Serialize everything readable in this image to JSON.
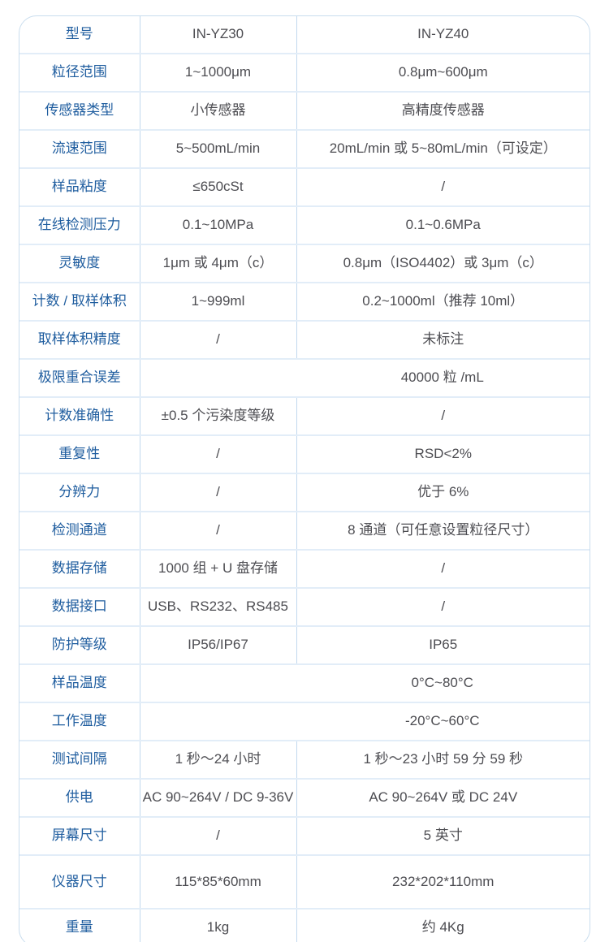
{
  "colors": {
    "label_text": "#1f5d9f",
    "value_text": "#4d4d52",
    "outer_border": "#c9ddee",
    "row_divider": "#e2edf8",
    "column_divider": "#c2d9ee",
    "background": "#ffffff"
  },
  "table": {
    "rows": [
      {
        "label": "型号",
        "values": [
          "IN-YZ30",
          "IN-YZ40"
        ]
      },
      {
        "label": "粒径范围",
        "values": [
          "1~1000μm",
          "0.8μm~600μm"
        ]
      },
      {
        "label": "传感器类型",
        "values": [
          "小传感器",
          "高精度传感器"
        ]
      },
      {
        "label": "流速范围",
        "values": [
          "5~500mL/min",
          "20mL/min 或 5~80mL/min（可设定）"
        ]
      },
      {
        "label": "样品粘度",
        "values": [
          "≤650cSt",
          "/"
        ]
      },
      {
        "label": "在线检测压力",
        "values": [
          "0.1~10MPa",
          "0.1~0.6MPa"
        ]
      },
      {
        "label": "灵敏度",
        "values": [
          "1μm 或 4μm（c）",
          "0.8μm（ISO4402）或 3μm（c）"
        ]
      },
      {
        "label": "计数 / 取样体积",
        "values": [
          "1~999ml",
          "0.2~1000ml（推荐 10ml）"
        ]
      },
      {
        "label": "取样体积精度",
        "values": [
          "/",
          "未标注"
        ]
      },
      {
        "label": "极限重合误差",
        "merged_value": "40000 粒 /mL"
      },
      {
        "label": "计数准确性",
        "values": [
          "±0.5 个污染度等级",
          "/"
        ]
      },
      {
        "label": "重复性",
        "values": [
          "/",
          "RSD<2%"
        ]
      },
      {
        "label": "分辨力",
        "values": [
          "/",
          "优于 6%"
        ]
      },
      {
        "label": "检测通道",
        "values": [
          "/",
          "8 通道（可任意设置粒径尺寸）"
        ]
      },
      {
        "label": "数据存储",
        "values": [
          "1000 组 + U 盘存储",
          "/"
        ]
      },
      {
        "label": "数据接口",
        "values": [
          "USB、RS232、RS485",
          "/"
        ]
      },
      {
        "label": "防护等级",
        "values": [
          "IP56/IP67",
          "IP65"
        ]
      },
      {
        "label": "样品温度",
        "merged_value": "0°C~80°C"
      },
      {
        "label": "工作温度",
        "merged_value": "-20°C~60°C"
      },
      {
        "label": "测试间隔",
        "values": [
          "1 秒～24 小时",
          "1 秒～23 小时 59 分 59 秒"
        ]
      },
      {
        "label": "供电",
        "values": [
          "AC 90~264V / DC 9-36V",
          "AC 90~264V 或 DC 24V"
        ]
      },
      {
        "label": "屏幕尺寸",
        "values": [
          "/",
          "5 英寸"
        ]
      },
      {
        "label": "仪器尺寸",
        "values": [
          "115*85*60mm",
          "232*202*110mm"
        ]
      },
      {
        "label": "重量",
        "values": [
          "1kg",
          "约 4Kg"
        ]
      }
    ]
  }
}
